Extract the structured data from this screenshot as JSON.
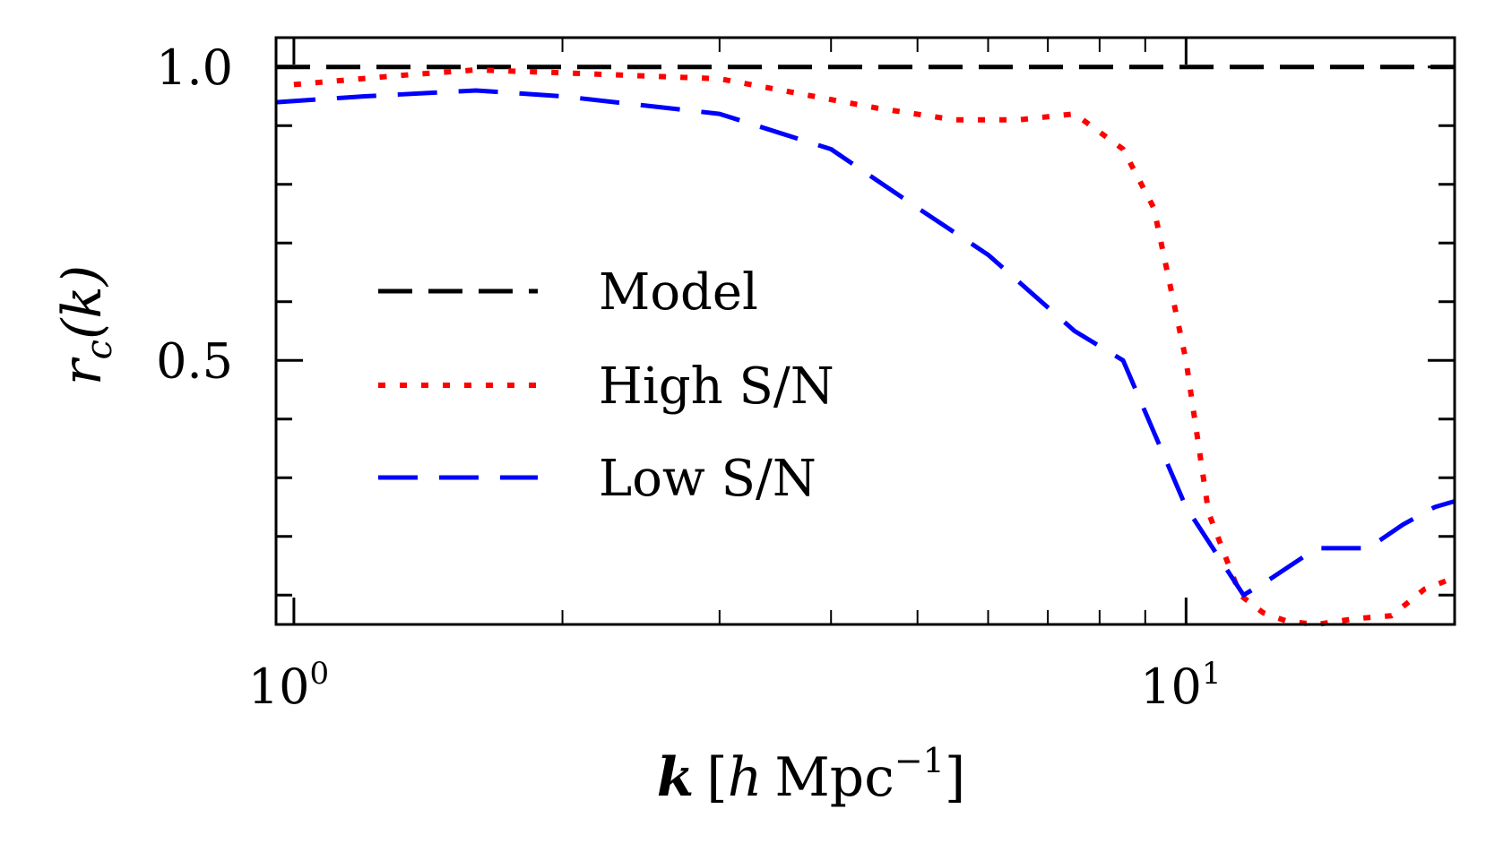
{
  "chart_data": {
    "type": "line",
    "title": "",
    "xscale": "log",
    "xlim": [
      0.955,
      20.0
    ],
    "ylim": [
      0.05,
      1.05
    ],
    "xlabel": {
      "k": "k",
      "lbr": "[",
      "h": "h",
      "mpc": "Mpc",
      "exp": "−1",
      "rbr": "]"
    },
    "ylabel": {
      "r": "r",
      "sub": "c",
      "arg": "(k)"
    },
    "xticks": [
      {
        "base": "10",
        "exp": "0",
        "value": 1
      },
      {
        "base": "10",
        "exp": "1",
        "value": 10
      }
    ],
    "yticks": [
      {
        "label": "1.0",
        "value": 1.0
      },
      {
        "label": "0.5",
        "value": 0.5
      }
    ],
    "legend_position": "center-left",
    "series": [
      {
        "name": "Model",
        "color": "#000000",
        "style": "dashed",
        "x": [
          0.955,
          20.0
        ],
        "y": [
          1.0,
          1.0
        ]
      },
      {
        "name": "High S/N",
        "color": "#ff0000",
        "style": "dotted",
        "x": [
          1.0,
          1.3,
          1.6,
          2.0,
          3.0,
          4.5,
          5.5,
          6.5,
          7.5,
          8.5,
          9.2,
          10.0,
          10.6,
          11.5,
          12.2,
          13.0,
          14.0,
          15.5,
          17.0,
          18.5,
          20.0
        ],
        "y": [
          0.97,
          0.985,
          0.995,
          0.99,
          0.98,
          0.93,
          0.91,
          0.91,
          0.92,
          0.86,
          0.76,
          0.5,
          0.24,
          0.1,
          0.07,
          0.055,
          0.05,
          0.06,
          0.065,
          0.11,
          0.13
        ]
      },
      {
        "name": "Low S/N",
        "color": "#0000ff",
        "style": "dashed",
        "x": [
          0.955,
          1.2,
          1.6,
          2.0,
          3.0,
          4.0,
          5.0,
          6.0,
          7.5,
          8.5,
          10.0,
          11.6,
          12.5,
          14.0,
          16.0,
          17.5,
          19.0,
          20.0
        ],
        "y": [
          0.94,
          0.95,
          0.96,
          0.95,
          0.92,
          0.86,
          0.76,
          0.68,
          0.55,
          0.5,
          0.25,
          0.1,
          0.13,
          0.18,
          0.18,
          0.22,
          0.25,
          0.26
        ]
      }
    ]
  }
}
